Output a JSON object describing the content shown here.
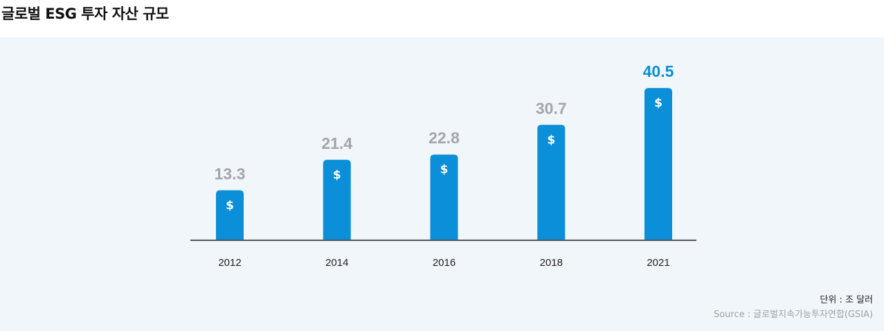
{
  "title": "글로벌 ESG 투자 자산 규모",
  "unit_note": "단위 : 조 달러",
  "source_note": "Source : 글로벌지속가능투자연합(GSIA)",
  "colors": {
    "bar": "#0a8fd8",
    "highlight_label": "#0a8fd8",
    "label": "#a3a6a9",
    "axis": "#555555",
    "panel_background": "#f1f6fa"
  },
  "bar_icon": "dollar-icon",
  "bar_icon_glyph": "$",
  "chart_data": {
    "type": "bar",
    "categories": [
      "2012",
      "2014",
      "2016",
      "2018",
      "2021"
    ],
    "values": [
      13.3,
      21.4,
      22.8,
      30.7,
      40.5
    ],
    "value_labels": [
      "13.3",
      "21.4",
      "22.8",
      "30.7",
      "40.5"
    ],
    "highlight_index": 4,
    "title": "글로벌 ESG 투자 자산 규모",
    "ylabel": "",
    "xlabel": "",
    "grid": false
  }
}
